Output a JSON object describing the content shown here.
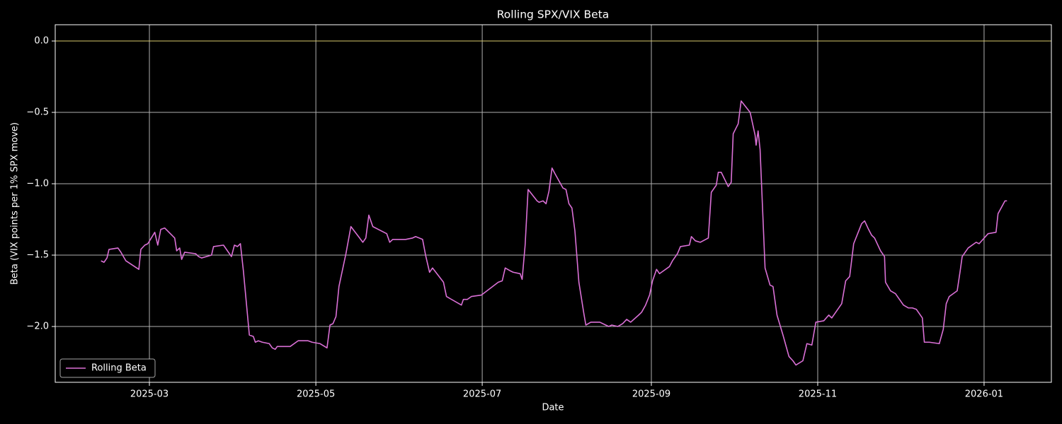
{
  "chart_data": {
    "type": "line",
    "title": "Rolling SPX/VIX Beta",
    "xlabel": "Date",
    "ylabel": "Beta (VIX points per 1% SPX move)",
    "x": [
      2025.113,
      2025.116,
      2025.119,
      2025.121,
      2025.13,
      2025.133,
      2025.138,
      2025.151,
      2025.153,
      2025.157,
      2025.16,
      2025.167,
      2025.17,
      2025.173,
      2025.177,
      2025.187,
      2025.189,
      2025.192,
      2025.194,
      2025.197,
      2025.208,
      2025.211,
      2025.214,
      2025.224,
      2025.226,
      2025.236,
      2025.244,
      2025.247,
      2025.25,
      2025.253,
      2025.256,
      2025.262,
      2025.266,
      2025.268,
      2025.271,
      2025.275,
      2025.282,
      2025.285,
      2025.288,
      2025.29,
      2025.303,
      2025.311,
      2025.321,
      2025.325,
      2025.333,
      2025.34,
      2025.343,
      2025.346,
      2025.349,
      2025.352,
      2025.359,
      2025.364,
      2025.376,
      2025.379,
      2025.382,
      2025.386,
      2025.4,
      2025.403,
      2025.406,
      2025.419,
      2025.426,
      2025.429,
      2025.436,
      2025.439,
      2025.443,
      2025.446,
      2025.457,
      2025.46,
      2025.475,
      2025.477,
      2025.481,
      2025.485,
      2025.495,
      2025.512,
      2025.516,
      2025.519,
      2025.524,
      2025.527,
      2025.534,
      2025.536,
      2025.539,
      2025.542,
      2025.551,
      2025.553,
      2025.557,
      2025.56,
      2025.563,
      2025.566,
      2025.569,
      2025.573,
      2025.577,
      2025.58,
      2025.583,
      2025.586,
      2025.589,
      2025.593,
      2025.598,
      2025.6,
      2025.605,
      2025.61,
      2025.614,
      2025.62,
      2025.623,
      2025.626,
      2025.632,
      2025.637,
      2025.641,
      2025.645,
      2025.653,
      2025.656,
      2025.66,
      2025.664,
      2025.667,
      2025.671,
      2025.674,
      2025.684,
      2025.687,
      2025.692,
      2025.695,
      2025.704,
      2025.706,
      2025.71,
      2025.715,
      2025.723,
      2025.726,
      2025.731,
      2025.733,
      2025.736,
      2025.743,
      2025.746,
      2025.748,
      2025.753,
      2025.756,
      2025.765,
      2025.77,
      2025.771,
      2025.773,
      2025.775,
      2025.78,
      2025.785,
      2025.788,
      2025.792,
      2025.798,
      2025.804,
      2025.808,
      2025.811,
      2025.818,
      2025.822,
      2025.827,
      2025.831,
      2025.839,
      2025.844,
      2025.847,
      2025.853,
      2025.857,
      2025.861,
      2025.865,
      2025.869,
      2025.877,
      2025.88,
      2025.884,
      2025.887,
      2025.89,
      2025.896,
      2025.9,
      2025.901,
      2025.906,
      2025.911,
      2025.919,
      2025.924,
      2025.928,
      2025.932,
      2025.938,
      2025.94,
      2025.945,
      2025.955,
      2025.959,
      2025.962,
      2025.965,
      2025.973,
      2025.976,
      2025.978,
      2025.984,
      2025.992,
      2025.995,
      2026.004,
      2026.012,
      2026.014,
      2026.021,
      2026.023
    ],
    "series": [
      {
        "name": "Rolling Beta",
        "color": "#da70d6",
        "values": [
          -1.54,
          -1.55,
          -1.52,
          -1.46,
          -1.45,
          -1.48,
          -1.54,
          -1.6,
          -1.46,
          -1.43,
          -1.42,
          -1.34,
          -1.43,
          -1.32,
          -1.31,
          -1.38,
          -1.47,
          -1.45,
          -1.53,
          -1.48,
          -1.49,
          -1.51,
          -1.52,
          -1.5,
          -1.44,
          -1.43,
          -1.51,
          -1.43,
          -1.44,
          -1.42,
          -1.61,
          -2.06,
          -2.07,
          -2.11,
          -2.1,
          -2.11,
          -2.12,
          -2.15,
          -2.16,
          -2.14,
          -2.14,
          -2.1,
          -2.1,
          -2.11,
          -2.12,
          -2.15,
          -1.99,
          -1.98,
          -1.93,
          -1.72,
          -1.49,
          -1.3,
          -1.41,
          -1.38,
          -1.22,
          -1.3,
          -1.35,
          -1.41,
          -1.39,
          -1.39,
          -1.38,
          -1.37,
          -1.39,
          -1.5,
          -1.62,
          -1.59,
          -1.69,
          -1.79,
          -1.85,
          -1.81,
          -1.81,
          -1.79,
          -1.78,
          -1.69,
          -1.68,
          -1.59,
          -1.61,
          -1.62,
          -1.63,
          -1.67,
          -1.43,
          -1.04,
          -1.12,
          -1.13,
          -1.12,
          -1.14,
          -1.05,
          -0.89,
          -0.93,
          -0.98,
          -1.03,
          -1.04,
          -1.14,
          -1.17,
          -1.33,
          -1.69,
          -1.91,
          -1.99,
          -1.97,
          -1.97,
          -1.97,
          -1.99,
          -2.0,
          -1.99,
          -2.0,
          -1.98,
          -1.95,
          -1.97,
          -1.92,
          -1.9,
          -1.85,
          -1.78,
          -1.68,
          -1.6,
          -1.63,
          -1.58,
          -1.54,
          -1.49,
          -1.44,
          -1.43,
          -1.37,
          -1.4,
          -1.41,
          -1.38,
          -1.06,
          -1.01,
          -0.92,
          -0.92,
          -1.02,
          -0.99,
          -0.65,
          -0.58,
          -0.42,
          -0.5,
          -0.66,
          -0.73,
          -0.63,
          -0.76,
          -1.59,
          -1.71,
          -1.72,
          -1.92,
          -2.06,
          -2.21,
          -2.24,
          -2.27,
          -2.24,
          -2.12,
          -2.13,
          -1.97,
          -1.96,
          -1.92,
          -1.94,
          -1.88,
          -1.84,
          -1.68,
          -1.65,
          -1.42,
          -1.28,
          -1.26,
          -1.32,
          -1.36,
          -1.38,
          -1.47,
          -1.51,
          -1.69,
          -1.75,
          -1.77,
          -1.85,
          -1.87,
          -1.87,
          -1.88,
          -1.94,
          -2.11,
          -2.11,
          -2.12,
          -2.02,
          -1.84,
          -1.79,
          -1.75,
          -1.61,
          -1.51,
          -1.45,
          -1.41,
          -1.42,
          -1.35,
          -1.34,
          -1.21,
          -1.12,
          -1.12
        ]
      }
    ],
    "hline": 0,
    "hline_color": "#d9c96b",
    "xlim": [
      2025.067,
      2026.0676
    ],
    "xticks": [
      {
        "value": 2025.1616,
        "label": "2025-03"
      },
      {
        "value": 2025.3288,
        "label": "2025-05"
      },
      {
        "value": 2025.4959,
        "label": "2025-07"
      },
      {
        "value": 2025.6658,
        "label": "2025-09"
      },
      {
        "value": 2025.8329,
        "label": "2025-11"
      },
      {
        "value": 2026.0,
        "label": "2026-01"
      }
    ],
    "ylim": [
      -2.391,
      0.114
    ],
    "yticks": [
      {
        "value": 0,
        "label": "0.0"
      },
      {
        "value": -0.5,
        "label": "−0.5"
      },
      {
        "value": -1.0,
        "label": "−1.0"
      },
      {
        "value": -1.5,
        "label": "−1.5"
      },
      {
        "value": -2.0,
        "label": "−2.0"
      }
    ],
    "grid": true,
    "legend": "lower left"
  }
}
